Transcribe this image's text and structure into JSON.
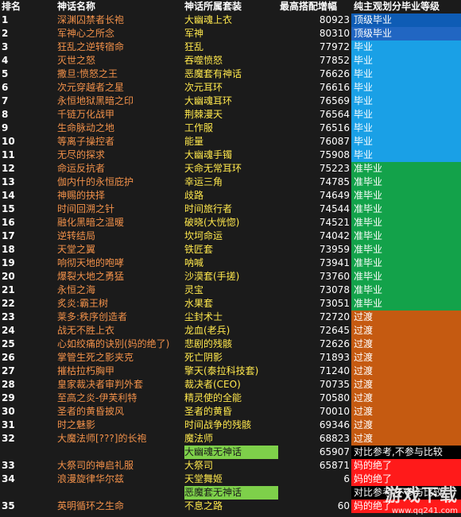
{
  "headers": {
    "rank": "排名",
    "name": "神话名称",
    "set": "神话所属套装",
    "value": "最高搭配增幅",
    "grade": "纯主观划分毕业等级"
  },
  "colors": {
    "top_grad_1": "#0e5cb5",
    "top_grad": "#2166c2",
    "grad": "#1aa0e6",
    "quasi": "#13a24a",
    "transition": "#c55a11",
    "mom": "#ff1a1a",
    "compare": "#000000",
    "set_note": "#7ed04a"
  },
  "rows": [
    {
      "rank": "1",
      "name": "深渊囚禁者长袍",
      "set": "大幽魂上衣",
      "value": "80923",
      "grade": "顶级毕业",
      "grade_color": "#0e5cb5"
    },
    {
      "rank": "2",
      "name": "军神心之所念",
      "set": "军神",
      "value": "80310",
      "grade": "顶级毕业",
      "grade_color": "#2166c2"
    },
    {
      "rank": "3",
      "name": "狂乱之逆转宿命",
      "set": "狂乱",
      "value": "77972",
      "grade": "毕业",
      "grade_color": "#1aa0e6"
    },
    {
      "rank": "4",
      "name": "灭世之怒",
      "set": "吞噬愤怒",
      "value": "77852",
      "grade": "毕业",
      "grade_color": "#1aa0e6"
    },
    {
      "rank": "5",
      "name": "撒旦:愤怒之王",
      "set": "恶魔套有神话",
      "value": "76626",
      "grade": "毕业",
      "grade_color": "#1aa0e6"
    },
    {
      "rank": "6",
      "name": "次元穿越者之星",
      "set": "次元耳环",
      "value": "76616",
      "grade": "毕业",
      "grade_color": "#1aa0e6"
    },
    {
      "rank": "7",
      "name": "永恒地狱黑暗之印",
      "set": "大幽魂耳环",
      "value": "76569",
      "grade": "毕业",
      "grade_color": "#1aa0e6"
    },
    {
      "rank": "8",
      "name": "千链万化战甲",
      "set": "荆棘漫天",
      "value": "76564",
      "grade": "毕业",
      "grade_color": "#1aa0e6"
    },
    {
      "rank": "9",
      "name": "生命脉动之地",
      "set": "工作服",
      "value": "76516",
      "grade": "毕业",
      "grade_color": "#1aa0e6"
    },
    {
      "rank": "10",
      "name": "等离子操控者",
      "set": "能量",
      "value": "76087",
      "grade": "毕业",
      "grade_color": "#1aa0e6"
    },
    {
      "rank": "11",
      "name": "无尽的探求",
      "set": "大幽魂手镯",
      "value": "75908",
      "grade": "毕业",
      "grade_color": "#1aa0e6"
    },
    {
      "rank": "12",
      "name": "命运反抗者",
      "set": "天命无常耳环",
      "value": "75223",
      "grade": "准毕业",
      "grade_color": "#13a24a"
    },
    {
      "rank": "13",
      "name": "伽内什的永恒庇护",
      "set": "幸运三角",
      "value": "74785",
      "grade": "准毕业",
      "grade_color": "#13a24a"
    },
    {
      "rank": "14",
      "name": "神赐的抉择",
      "set": "歧路",
      "value": "74649",
      "grade": "准毕业",
      "grade_color": "#13a24a"
    },
    {
      "rank": "15",
      "name": "时间回溯之针",
      "set": "时间旅行者",
      "value": "74544",
      "grade": "准毕业",
      "grade_color": "#13a24a"
    },
    {
      "rank": "16",
      "name": "融化黑暗之温暖",
      "set": "破晓(大恍惚)",
      "value": "74521",
      "grade": "准毕业",
      "grade_color": "#13a24a"
    },
    {
      "rank": "17",
      "name": "逆转结局",
      "set": "坎坷命运",
      "value": "74042",
      "grade": "准毕业",
      "grade_color": "#13a24a"
    },
    {
      "rank": "18",
      "name": "天堂之翼",
      "set": "铁匠套",
      "value": "73959",
      "grade": "准毕业",
      "grade_color": "#13a24a"
    },
    {
      "rank": "19",
      "name": "响彻天地的咆哮",
      "set": "呐喊",
      "value": "73941",
      "grade": "准毕业",
      "grade_color": "#13a24a"
    },
    {
      "rank": "20",
      "name": "爆裂大地之勇猛",
      "set": "沙漠套(手搓)",
      "value": "73760",
      "grade": "准毕业",
      "grade_color": "#13a24a"
    },
    {
      "rank": "21",
      "name": "永恒之海",
      "set": "灵宝",
      "value": "73078",
      "grade": "准毕业",
      "grade_color": "#13a24a"
    },
    {
      "rank": "22",
      "name": "炙炎:霸王树",
      "set": "水果套",
      "value": "73051",
      "grade": "准毕业",
      "grade_color": "#13a24a"
    },
    {
      "rank": "23",
      "name": "莱多:秩序创造者",
      "set": "尘封术士",
      "value": "72720",
      "grade": "过渡",
      "grade_color": "#c55a11"
    },
    {
      "rank": "24",
      "name": "战无不胜上衣",
      "set": "龙血(老兵)",
      "value": "72645",
      "grade": "过渡",
      "grade_color": "#c55a11"
    },
    {
      "rank": "25",
      "name": "心如绞痛的诀别(妈的绝了)",
      "set": "悲剧的残骸",
      "value": "72626",
      "grade": "过渡",
      "grade_color": "#c55a11"
    },
    {
      "rank": "26",
      "name": "掌管生死之影夹克",
      "set": "死亡阴影",
      "value": "71893",
      "grade": "过渡",
      "grade_color": "#c55a11"
    },
    {
      "rank": "27",
      "name": "摧枯拉朽胸甲",
      "set": "擎天(泰拉科技套)",
      "value": "71240",
      "grade": "过渡",
      "grade_color": "#c55a11"
    },
    {
      "rank": "28",
      "name": "皇家裁决者审判外套",
      "set": "裁决者(CEO)",
      "value": "70735",
      "grade": "过渡",
      "grade_color": "#c55a11"
    },
    {
      "rank": "29",
      "name": "至高之炎-伊芙利特",
      "set": "精灵使的全能",
      "value": "70580",
      "grade": "过渡",
      "grade_color": "#c55a11"
    },
    {
      "rank": "30",
      "name": "圣者的黄昏披风",
      "set": "圣者的黄昏",
      "value": "70010",
      "grade": "过渡",
      "grade_color": "#c55a11"
    },
    {
      "rank": "31",
      "name": "时之魅影",
      "set": "时间战争的残骸",
      "value": "69346",
      "grade": "过渡",
      "grade_color": "#c55a11"
    },
    {
      "rank": "32",
      "name": "大魔法师[???]的长袍",
      "set": "魔法师",
      "value": "68823",
      "grade": "过渡",
      "grade_color": "#c55a11"
    },
    {
      "rank": "",
      "name": "",
      "set": "大幽魂无神话",
      "value": "65907",
      "grade": "对比参考,不参与比较",
      "grade_color": "#000000",
      "set_note": true
    },
    {
      "rank": "33",
      "name": "大祭司的神启礼服",
      "set": "大祭司",
      "value": "65871",
      "grade": "妈的绝了",
      "grade_color": "#ff1a1a"
    },
    {
      "rank": "34",
      "name": "浪漫旋律华尔兹",
      "set": "天堂舞姬",
      "value": "6",
      "grade": "妈的绝了",
      "grade_color": "#ff1a1a"
    },
    {
      "rank": "",
      "name": "",
      "set": "恶魔套无神话",
      "value": "",
      "grade": "对比参考,不参与比较",
      "grade_color": "#000000",
      "set_note": true
    },
    {
      "rank": "35",
      "name": "英明循环之生命",
      "set": "不息之路",
      "value": "60",
      "grade": "妈的绝了",
      "grade_color": "#ff1a1a"
    }
  ],
  "watermark": {
    "big": "游戏下载",
    "url": "www.qq241.com"
  }
}
